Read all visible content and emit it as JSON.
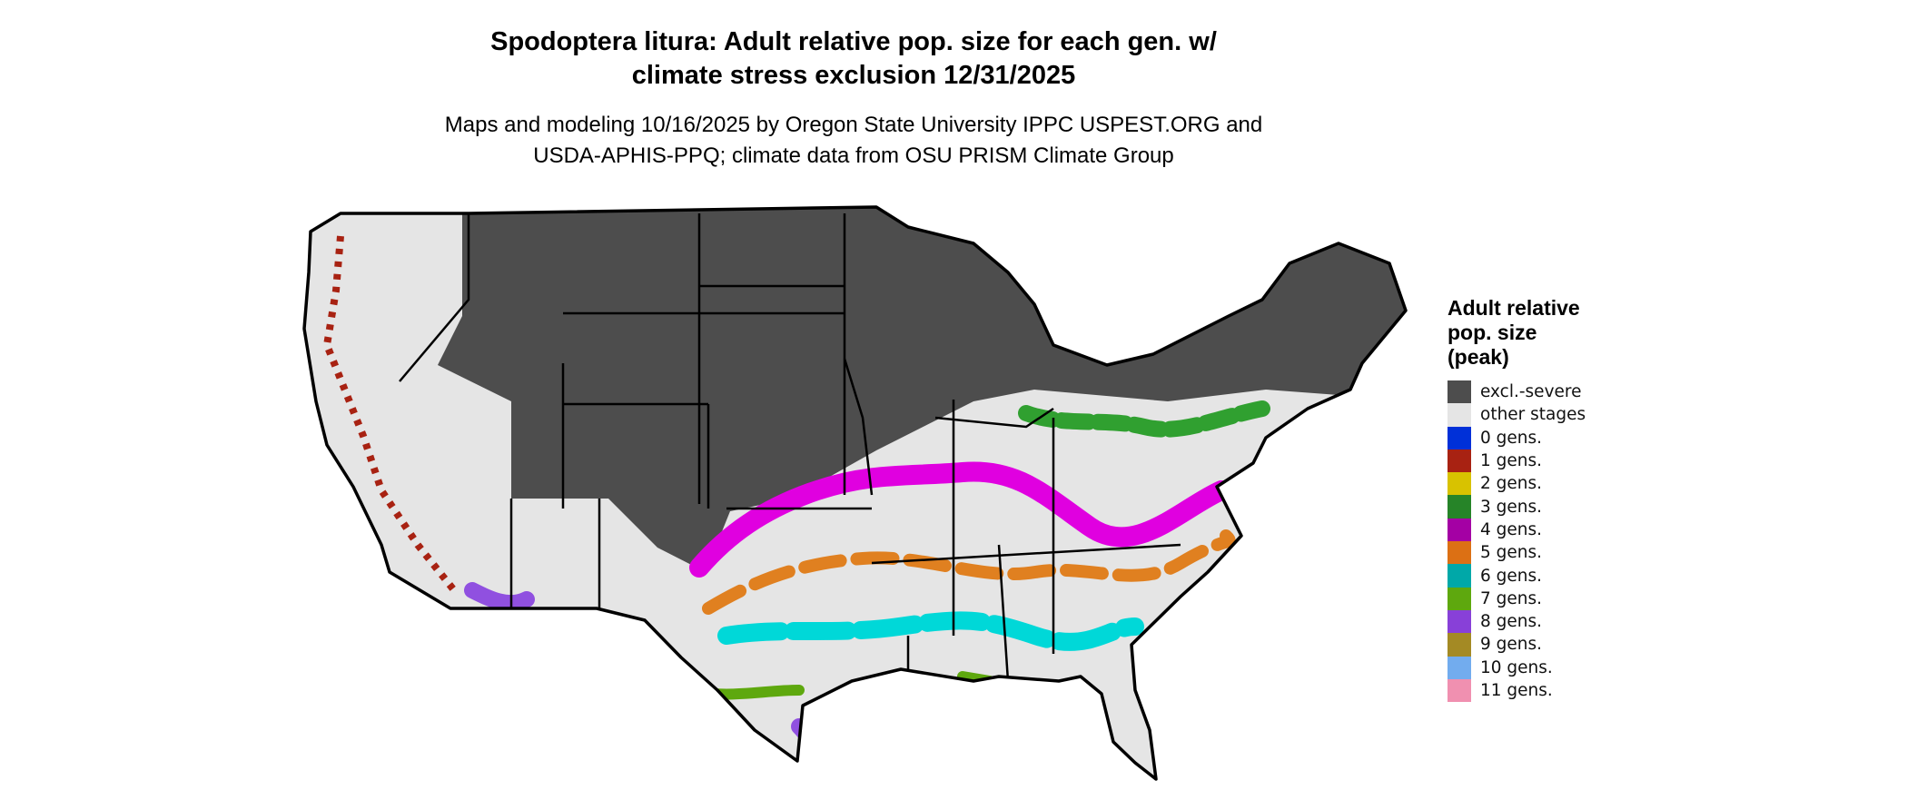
{
  "title": {
    "line1": "Spodoptera litura: Adult relative pop. size for each gen. w/",
    "line2": "climate stress exclusion 12/31/2025"
  },
  "subtitle": {
    "line1": "Maps and modeling 10/16/2025 by Oregon State University IPPC USPEST.ORG and",
    "line2": "USDA-APHIS-PPQ; climate data from OSU PRISM Climate Group"
  },
  "legend": {
    "title_lines": [
      "Adult relative",
      "pop. size",
      "(peak)"
    ],
    "items": [
      {
        "label": "excl.-severe",
        "color": "#4d4d4d"
      },
      {
        "label": "other stages",
        "color": "#e5e5e5"
      },
      {
        "label": "0 gens.",
        "color": "#0030d8"
      },
      {
        "label": "1 gens.",
        "color": "#a82212"
      },
      {
        "label": "2 gens.",
        "color": "#d8c200"
      },
      {
        "label": "3 gens.",
        "color": "#268428"
      },
      {
        "label": "4 gens.",
        "color": "#a400a4"
      },
      {
        "label": "5 gens.",
        "color": "#dc7014"
      },
      {
        "label": "6 gens.",
        "color": "#00a8a8"
      },
      {
        "label": "7 gens.",
        "color": "#5ea80e"
      },
      {
        "label": "8 gens.",
        "color": "#8840d8"
      },
      {
        "label": "9 gens.",
        "color": "#a48a24"
      },
      {
        "label": "10 gens.",
        "color": "#72acee"
      },
      {
        "label": "11 gens.",
        "color": "#f090b0"
      }
    ]
  },
  "map": {
    "region": "Contiguous United States",
    "border_color": "#000000",
    "highlight_colors": {
      "magenta": "#e000e0",
      "cyan": "#00d8d8",
      "orange": "#e08020",
      "green": "#30a030",
      "violet": "#9050e0"
    }
  }
}
